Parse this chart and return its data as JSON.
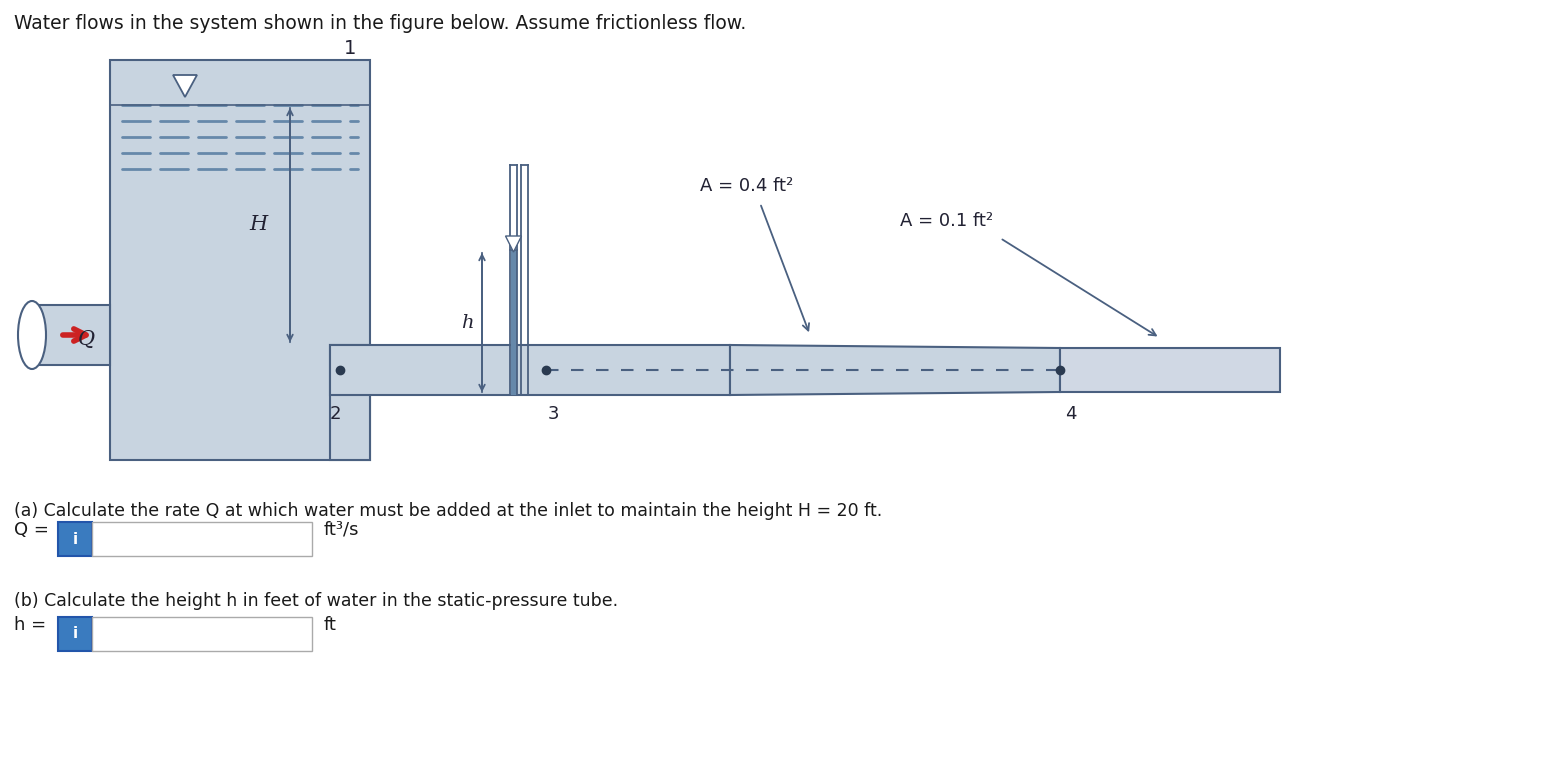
{
  "title": "Water flows in the system shown in the figure below. Assume frictionless flow.",
  "bg_color": "#ffffff",
  "tank_color": "#c8d4e0",
  "pipe_color": "#c8d4e0",
  "outlet_pipe_color": "#d0d8e4",
  "outline_color": "#4a6080",
  "dashed_color": "#6688aa",
  "arrow_color": "#cc2222",
  "text_color": "#1a1a1a",
  "label_color": "#222233",
  "dim_arrow_color": "#4a6080",
  "part_a": "(a) Calculate the rate Q at which water must be added at the inlet to maintain the height H = 20 ft.",
  "part_b": "(b) Calculate the height h in feet of water in the static-pressure tube.",
  "q_label": "Q =",
  "q_unit": "ft³/s",
  "h_label": "h =",
  "h_unit": "ft",
  "A_wide_label": "A = 0.4 ft²",
  "A_narrow_label": "A = 0.1 ft²",
  "node1": "1",
  "node2": "2",
  "node3": "3",
  "node4": "4",
  "H_label": "H",
  "h_dim_label": "h",
  "Q_flow_label": "Q"
}
